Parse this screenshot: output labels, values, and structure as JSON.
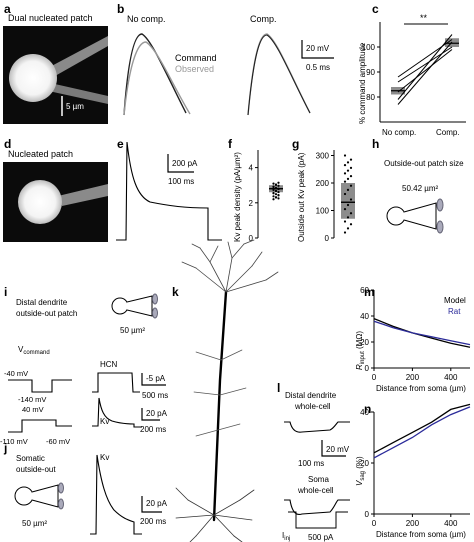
{
  "panels": {
    "a": {
      "letter": "a",
      "title": "Dual nucleated patch",
      "scale": "5 µm"
    },
    "b": {
      "letter": "b",
      "left_title": "No comp.",
      "right_title": "Comp.",
      "legend_command": "Command",
      "legend_observed": "Observed",
      "scale_v": "20 mV",
      "scale_t": "0.5 ms",
      "color_command": "#222222",
      "color_observed": "#999999"
    },
    "c": {
      "letter": "c",
      "ylabel": "% command amplitude",
      "significance": "**",
      "chart_data": {
        "type": "scatter",
        "categories": [
          "No comp.",
          "Comp."
        ],
        "ylim": [
          70,
          110
        ],
        "yticks": [
          80,
          90,
          100
        ],
        "pairs": [
          [
            77,
            102
          ],
          [
            82,
            99
          ],
          [
            86,
            100
          ],
          [
            88,
            103
          ],
          [
            79,
            105
          ]
        ],
        "box_no_comp": [
          81,
          84,
          82.5
        ],
        "box_comp": [
          100,
          103.5,
          101.5
        ]
      }
    },
    "d": {
      "letter": "d",
      "title": "Nucleated patch"
    },
    "e": {
      "letter": "e",
      "scale_i": "200 pA",
      "scale_t": "100 ms"
    },
    "f": {
      "letter": "f",
      "ylabel": "Kv peak density (pA/µm²)",
      "chart_data": {
        "type": "scatter",
        "ylim": [
          0,
          5
        ],
        "yticks": [
          0,
          2,
          4
        ],
        "median": 2.8,
        "box": [
          2.6,
          3.0
        ]
      }
    },
    "g": {
      "letter": "g",
      "ylabel": "Outside out Kv peak (pA)",
      "chart_data": {
        "type": "scatter",
        "ylim": [
          0,
          320
        ],
        "yticks": [
          0,
          100,
          200,
          300
        ],
        "median": 130,
        "box": [
          70,
          200
        ]
      }
    },
    "h": {
      "letter": "h",
      "title": "Outside-out patch size",
      "value": "50.42 µm²"
    },
    "i": {
      "letter": "i",
      "title_line1": "Distal dendrite",
      "title_line2": "outside-out patch",
      "area": "50 µm²",
      "vcommand": "V",
      "vcommand_sub": "command",
      "hcn_label": "HCN",
      "v_minus40": "-40 mV",
      "v_minus140": "-140 mV",
      "hcn_scale_i": "-5 pA",
      "hcn_scale_t": "500 ms",
      "kv_label": "Kv",
      "v_40": "40 mV",
      "v_minus110": "-110 mV",
      "v_minus60": "-60 mV",
      "kv_scale_i": "20 pA",
      "kv_scale_t": "200 ms"
    },
    "j": {
      "letter": "j",
      "title_line1": "Somatic",
      "title_line2": "outside-out",
      "area": "50 µm²",
      "kv_label": "Kv",
      "scale_i": "20 pA",
      "scale_t": "200 ms"
    },
    "k": {
      "letter": "k"
    },
    "l": {
      "letter": "l",
      "title_line1": "Distal dendrite",
      "title_line2": "whole-cell",
      "scale_v": "20 mV",
      "scale_t": "100 ms",
      "soma_line1": "Soma",
      "soma_line2": "whole-cell",
      "iinj": "I",
      "iinj_sub": "inj",
      "iinj_value": "500 pA"
    },
    "m": {
      "letter": "m",
      "ylabel_main": "R",
      "ylabel_sub": "input",
      "ylabel_unit": " (MΩ)",
      "xlabel": "Distance from soma (µm)",
      "legend_model": "Model",
      "legend_rat": "Rat",
      "color_model": "#000000",
      "color_rat": "#2b2b9a",
      "chart_data": {
        "type": "line",
        "xlim": [
          0,
          500
        ],
        "ylim": [
          0,
          60
        ],
        "xticks": [
          0,
          200,
          400
        ],
        "yticks": [
          0,
          20,
          40,
          60
        ],
        "x": [
          0,
          100,
          200,
          300,
          400,
          500
        ],
        "series": [
          {
            "name": "Model",
            "values": [
              38,
              32,
              27,
              23,
              19,
              16
            ]
          },
          {
            "name": "Rat",
            "values": [
              36,
              31,
              27,
              24,
              21,
              18
            ]
          }
        ]
      }
    },
    "n": {
      "letter": "n",
      "ylabel_main": "V",
      "ylabel_sub": "sag",
      "ylabel_unit": " (%)",
      "xlabel": "Distance from soma (µm)",
      "color_model": "#000000",
      "color_rat": "#2b2b9a",
      "chart_data": {
        "type": "line",
        "xlim": [
          0,
          500
        ],
        "ylim": [
          0,
          40
        ],
        "xticks": [
          0,
          200,
          400
        ],
        "yticks": [
          0,
          20,
          40
        ],
        "x": [
          0,
          100,
          200,
          300,
          400,
          500
        ],
        "series": [
          {
            "name": "Model",
            "values": [
              24,
              28,
              32,
              36,
              41,
              43
            ]
          },
          {
            "name": "Rat",
            "values": [
              22,
              26,
              30,
              35,
              39,
              42
            ]
          }
        ]
      }
    }
  }
}
